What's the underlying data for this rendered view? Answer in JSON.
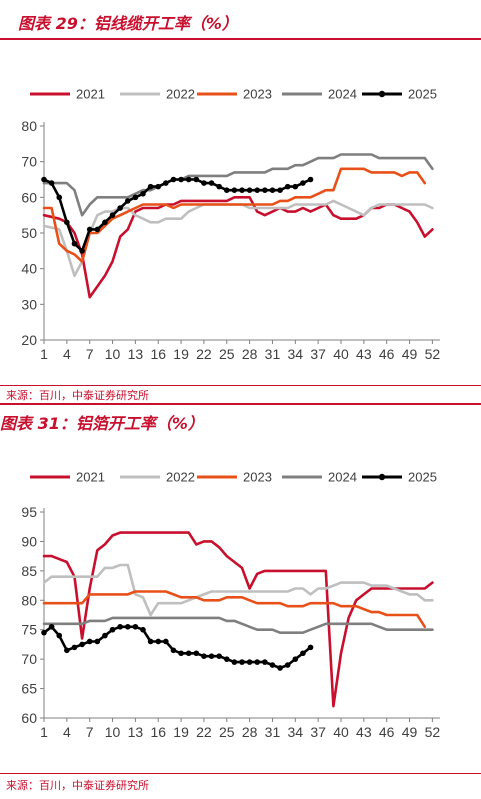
{
  "colors": {
    "brand": "#c8102e",
    "s2021": "#c8102e",
    "s2022": "#bfbfbf",
    "s2023": "#e8501a",
    "s2024": "#7f7f7f",
    "s2025": "#000000"
  },
  "chart_data": [
    {
      "type": "line",
      "title": "图表 29：铝线缆开工率（%）",
      "source": "来源：百川，中泰证券研究所",
      "xlim": [
        1,
        53
      ],
      "ylim": [
        20,
        80
      ],
      "yticks": [
        20,
        30,
        40,
        50,
        60,
        70,
        80
      ],
      "xticks": [
        1,
        4,
        7,
        10,
        13,
        16,
        19,
        22,
        25,
        28,
        31,
        34,
        37,
        40,
        43,
        46,
        49,
        52
      ],
      "legend": "top",
      "grid": false,
      "series": [
        {
          "name": "2021",
          "key": "s2021",
          "x": [
            1,
            3,
            4,
            5,
            6,
            7,
            8,
            9,
            10,
            11,
            12,
            13,
            14,
            15,
            16,
            17,
            18,
            19,
            20,
            21,
            22,
            23,
            24,
            25,
            26,
            27,
            28,
            29,
            30,
            31,
            32,
            33,
            34,
            35,
            36,
            37,
            38,
            39,
            40,
            41,
            42,
            43,
            44,
            45,
            46,
            47,
            48,
            49,
            50,
            51,
            52
          ],
          "y": [
            55,
            54,
            53,
            50,
            44,
            32,
            35,
            38,
            42,
            49,
            51,
            56,
            57,
            57,
            57,
            58,
            58,
            59,
            59,
            59,
            59,
            59,
            59,
            59,
            60,
            60,
            60,
            56,
            55,
            56,
            57,
            56,
            56,
            57,
            56,
            57,
            58,
            55,
            54,
            54,
            54,
            55,
            57,
            57,
            58,
            58,
            57,
            56,
            53,
            49,
            51
          ]
        },
        {
          "name": "2022",
          "key": "s2022",
          "x": [
            1,
            3,
            4,
            5,
            6,
            7,
            8,
            9,
            10,
            11,
            12,
            13,
            14,
            15,
            16,
            17,
            18,
            19,
            20,
            21,
            22,
            23,
            24,
            25,
            26,
            27,
            28,
            29,
            30,
            31,
            32,
            33,
            34,
            35,
            36,
            37,
            38,
            39,
            40,
            41,
            42,
            43,
            44,
            45,
            46,
            47,
            48,
            49,
            50,
            51,
            52
          ],
          "y": [
            52,
            51,
            45,
            38,
            42,
            50,
            55,
            56,
            56,
            57,
            57,
            55,
            54,
            53,
            53,
            54,
            54,
            54,
            56,
            57,
            58,
            58,
            58,
            58,
            58,
            58,
            57,
            57,
            57,
            57,
            57,
            57,
            58,
            58,
            58,
            58,
            58,
            59,
            58,
            57,
            56,
            55,
            57,
            58,
            58,
            58,
            58,
            58,
            58,
            58,
            57
          ]
        },
        {
          "name": "2023",
          "key": "s2023",
          "x": [
            1,
            2,
            3,
            4,
            5,
            6,
            7,
            8,
            9,
            10,
            11,
            12,
            13,
            14,
            15,
            16,
            17,
            18,
            19,
            20,
            21,
            22,
            23,
            24,
            25,
            26,
            27,
            28,
            29,
            30,
            31,
            32,
            33,
            34,
            35,
            36,
            37,
            38,
            39,
            40,
            41,
            42,
            43,
            44,
            45,
            46,
            47,
            48,
            49,
            50,
            51
          ],
          "y": [
            57,
            57,
            47,
            45,
            44,
            42,
            50,
            50,
            52,
            54,
            55,
            56,
            57,
            58,
            58,
            58,
            58,
            57,
            58,
            58,
            58,
            58,
            58,
            58,
            58,
            58,
            58,
            58,
            58,
            58,
            58,
            59,
            59,
            60,
            60,
            60,
            61,
            62,
            62,
            68,
            68,
            68,
            68,
            67,
            67,
            67,
            67,
            66,
            67,
            67,
            64
          ]
        },
        {
          "name": "2024",
          "key": "s2024",
          "x": [
            1,
            2,
            3,
            4,
            5,
            6,
            7,
            8,
            9,
            10,
            11,
            12,
            13,
            14,
            15,
            16,
            17,
            18,
            19,
            20,
            21,
            22,
            23,
            24,
            25,
            26,
            27,
            28,
            29,
            30,
            31,
            32,
            33,
            34,
            35,
            36,
            37,
            38,
            39,
            40,
            41,
            42,
            43,
            44,
            45,
            46,
            47,
            48,
            49,
            50,
            51,
            52
          ],
          "y": [
            64,
            64,
            64,
            64,
            62,
            55,
            58,
            60,
            60,
            60,
            60,
            60,
            61,
            62,
            62,
            63,
            64,
            65,
            65,
            66,
            66,
            66,
            66,
            66,
            66,
            67,
            67,
            67,
            67,
            67,
            68,
            68,
            68,
            69,
            69,
            70,
            71,
            71,
            71,
            72,
            72,
            72,
            72,
            72,
            71,
            71,
            71,
            71,
            71,
            71,
            71,
            68
          ]
        },
        {
          "name": "2025",
          "key": "s2025",
          "x": [
            1,
            2,
            3,
            4,
            5,
            6,
            7,
            8,
            9,
            10,
            11,
            12,
            13,
            14,
            15,
            16,
            17,
            18,
            19,
            20,
            21,
            22,
            23,
            24,
            25,
            26,
            27,
            28,
            29,
            30,
            31,
            32,
            33,
            34,
            35,
            36
          ],
          "y": [
            65,
            64,
            60,
            53,
            47,
            45,
            51,
            51,
            53,
            55,
            57,
            59,
            60,
            61,
            63,
            63,
            64,
            65,
            65,
            65,
            65,
            64,
            64,
            63,
            62,
            62,
            62,
            62,
            62,
            62,
            62,
            62,
            63,
            63,
            64,
            65
          ]
        }
      ]
    },
    {
      "type": "line",
      "title": "图表 31：铝箔开工率（%）",
      "source": "来源：百川，中泰证券研究所",
      "xlim": [
        1,
        53
      ],
      "ylim": [
        60,
        95
      ],
      "yticks": [
        60,
        65,
        70,
        75,
        80,
        85,
        90,
        95
      ],
      "xticks": [
        1,
        4,
        7,
        10,
        13,
        16,
        19,
        22,
        25,
        28,
        31,
        34,
        37,
        40,
        43,
        46,
        49,
        52
      ],
      "legend": "top",
      "grid": false,
      "series": [
        {
          "name": "2021",
          "key": "s2021",
          "x": [
            1,
            2,
            3,
            4,
            5,
            6,
            7,
            8,
            9,
            10,
            11,
            12,
            13,
            14,
            15,
            16,
            17,
            18,
            19,
            20,
            21,
            22,
            23,
            24,
            25,
            26,
            27,
            28,
            29,
            30,
            31,
            32,
            33,
            34,
            35,
            36,
            37,
            38,
            39,
            40,
            41,
            42,
            43,
            44,
            45,
            46,
            47,
            48,
            49,
            50,
            51,
            52
          ],
          "y": [
            87.5,
            87.5,
            87,
            86.5,
            84,
            73.5,
            82,
            88.5,
            89.5,
            91,
            91.5,
            91.5,
            91.5,
            91.5,
            91.5,
            91.5,
            91.5,
            91.5,
            91.5,
            91.5,
            89.5,
            90,
            90,
            89,
            87.5,
            86.5,
            85.5,
            82,
            84.5,
            85,
            85,
            85,
            85,
            85,
            85,
            85,
            85,
            85,
            62,
            71,
            77,
            80,
            81,
            82,
            82,
            82,
            82,
            82,
            82,
            82,
            82,
            83
          ]
        },
        {
          "name": "2022",
          "key": "s2022",
          "x": [
            1,
            2,
            3,
            4,
            5,
            6,
            7,
            8,
            9,
            10,
            11,
            12,
            13,
            14,
            15,
            16,
            17,
            18,
            19,
            20,
            21,
            22,
            23,
            24,
            25,
            26,
            27,
            28,
            29,
            30,
            31,
            32,
            33,
            34,
            35,
            36,
            37,
            38,
            39,
            40,
            41,
            42,
            43,
            44,
            45,
            46,
            47,
            48,
            49,
            50,
            51,
            52
          ],
          "y": [
            83,
            84,
            84,
            84,
            84,
            84,
            84,
            84,
            85.5,
            85.5,
            86,
            86,
            81,
            80.5,
            77.5,
            79.5,
            79.5,
            79.5,
            79.5,
            80,
            80.5,
            81,
            81.5,
            81.5,
            81.5,
            81.5,
            81.5,
            81.5,
            81.5,
            81.5,
            81.5,
            81.5,
            81.5,
            82,
            82,
            81,
            82,
            82,
            82.5,
            83,
            83,
            83,
            83,
            82.5,
            82.5,
            82.5,
            82,
            81.5,
            81,
            81,
            80,
            80
          ]
        },
        {
          "name": "2023",
          "key": "s2023",
          "x": [
            1,
            2,
            3,
            4,
            5,
            6,
            7,
            8,
            9,
            10,
            11,
            12,
            13,
            14,
            15,
            16,
            17,
            18,
            19,
            20,
            21,
            22,
            23,
            24,
            25,
            26,
            27,
            28,
            29,
            30,
            31,
            32,
            33,
            34,
            35,
            36,
            37,
            38,
            39,
            40,
            41,
            42,
            43,
            44,
            45,
            46,
            47,
            48,
            49,
            50,
            51
          ],
          "y": [
            79.5,
            79.5,
            79.5,
            79.5,
            79.5,
            79.5,
            81,
            81,
            81,
            81,
            81,
            81,
            81.5,
            81.5,
            81.5,
            81.5,
            81.5,
            81,
            80.5,
            80.5,
            80.5,
            80,
            80,
            80,
            80.5,
            80.5,
            80.5,
            80,
            79.5,
            79.5,
            79.5,
            79.5,
            79,
            79,
            79,
            79.5,
            79.5,
            79.5,
            79.5,
            79,
            79,
            79,
            78.5,
            78,
            78,
            77.5,
            77.5,
            77.5,
            77.5,
            77.5,
            75.5
          ]
        },
        {
          "name": "2024",
          "key": "s2024",
          "x": [
            1,
            2,
            3,
            4,
            5,
            6,
            7,
            8,
            9,
            10,
            11,
            12,
            13,
            14,
            15,
            16,
            17,
            18,
            19,
            20,
            21,
            22,
            23,
            24,
            25,
            26,
            27,
            28,
            29,
            30,
            31,
            32,
            33,
            34,
            35,
            36,
            37,
            38,
            39,
            40,
            41,
            42,
            43,
            44,
            45,
            46,
            47,
            48,
            49,
            50,
            51,
            52
          ],
          "y": [
            76,
            76,
            76,
            76,
            76,
            76,
            76.5,
            76.5,
            76.5,
            77,
            77,
            77,
            77,
            77,
            77,
            77,
            77,
            77,
            77,
            77,
            77,
            77,
            77,
            77,
            76.5,
            76.5,
            76,
            75.5,
            75,
            75,
            75,
            74.5,
            74.5,
            74.5,
            74.5,
            75,
            75.5,
            76,
            76,
            76,
            76,
            76,
            76,
            76,
            75.5,
            75,
            75,
            75,
            75,
            75,
            75,
            75
          ]
        },
        {
          "name": "2025",
          "key": "s2025",
          "x": [
            1,
            2,
            3,
            4,
            5,
            6,
            7,
            8,
            9,
            10,
            11,
            12,
            13,
            14,
            15,
            16,
            17,
            18,
            19,
            20,
            21,
            22,
            23,
            24,
            25,
            26,
            27,
            28,
            29,
            30,
            31,
            32,
            33,
            34,
            35,
            36
          ],
          "y": [
            74.5,
            75.5,
            74,
            71.5,
            72,
            72.5,
            73,
            73,
            74,
            75,
            75.5,
            75.5,
            75.5,
            75,
            73,
            73,
            73,
            71.5,
            71,
            71,
            71,
            70.5,
            70.5,
            70.5,
            70,
            69.5,
            69.5,
            69.5,
            69.5,
            69.5,
            69,
            68.5,
            69,
            70,
            71,
            72
          ]
        }
      ]
    }
  ]
}
